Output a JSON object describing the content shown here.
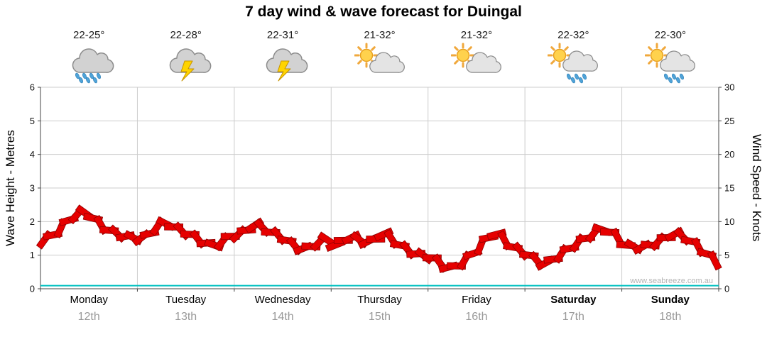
{
  "title": "7 day wind & wave forecast for Duingal",
  "watermark": "www.seabreeze.com.au",
  "days": [
    {
      "name": "Monday",
      "date": "12th",
      "temp": "22-25°",
      "icon": "rain",
      "bold": false
    },
    {
      "name": "Tuesday",
      "date": "13th",
      "temp": "22-28°",
      "icon": "storm",
      "bold": false
    },
    {
      "name": "Wednesday",
      "date": "14th",
      "temp": "22-31°",
      "icon": "storm",
      "bold": false
    },
    {
      "name": "Thursday",
      "date": "15th",
      "temp": "21-32°",
      "icon": "sun-cloud",
      "bold": false
    },
    {
      "name": "Friday",
      "date": "16th",
      "temp": "21-32°",
      "icon": "sun-cloud",
      "bold": false
    },
    {
      "name": "Saturday",
      "date": "17th",
      "temp": "22-32°",
      "icon": "sun-cloud-rain",
      "bold": true
    },
    {
      "name": "Sunday",
      "date": "18th",
      "temp": "22-30°",
      "icon": "sun-cloud-rain",
      "bold": true
    }
  ],
  "axes": {
    "left_label": "Wave Height - Metres",
    "right_label": "Wind Speed - Knots",
    "left_ticks": [
      0,
      1,
      2,
      3,
      4,
      5,
      6
    ],
    "right_ticks": [
      0,
      5,
      10,
      15,
      20,
      25,
      30
    ]
  },
  "chart_data": {
    "type": "line",
    "title": "7 day wind & wave forecast for Duingal",
    "categories": [
      "Monday 12th",
      "Tuesday 13th",
      "Wednesday 14th",
      "Thursday 15th",
      "Friday 16th",
      "Saturday 17th",
      "Sunday 18th"
    ],
    "points_per_day": 12,
    "y_left": {
      "label": "Wave Height - Metres",
      "range": [
        0,
        6
      ]
    },
    "y_right": {
      "label": "Wind Speed - Knots",
      "range": [
        0,
        30
      ]
    },
    "grid": true,
    "legend": false,
    "series": [
      {
        "name": "Wind Speed",
        "units": "knots",
        "color": "#e60000",
        "style": "wind-barbs",
        "values": [
          7.3,
          8.0,
          9.0,
          10.2,
          11.0,
          11.3,
          10.5,
          9.5,
          8.7,
          8.2,
          7.8,
          7.6,
          7.6,
          8.2,
          9.3,
          9.7,
          9.2,
          8.6,
          8.1,
          7.4,
          6.8,
          6.5,
          7.0,
          7.8,
          8.1,
          8.7,
          9.4,
          9.1,
          8.4,
          7.9,
          7.2,
          6.4,
          6.0,
          6.3,
          6.9,
          7.3,
          6.5,
          7.2,
          7.6,
          7.3,
          7.0,
          7.4,
          8.1,
          7.4,
          6.5,
          5.8,
          5.2,
          4.9,
          4.6,
          3.8,
          3.2,
          3.4,
          4.2,
          5.2,
          6.4,
          7.6,
          8.1,
          7.2,
          6.2,
          5.6,
          5.0,
          4.2,
          3.8,
          4.4,
          5.2,
          6.0,
          6.8,
          7.5,
          8.2,
          8.8,
          8.4,
          7.6,
          6.5,
          6.3,
          6.2,
          6.5,
          7.0,
          7.6,
          8.1,
          7.8,
          7.1,
          6.2,
          5.2,
          4.2
        ]
      },
      {
        "name": "Wave Height",
        "units": "metres",
        "color": "#00c0c0",
        "style": "line",
        "constant_value": 0.05
      }
    ]
  }
}
